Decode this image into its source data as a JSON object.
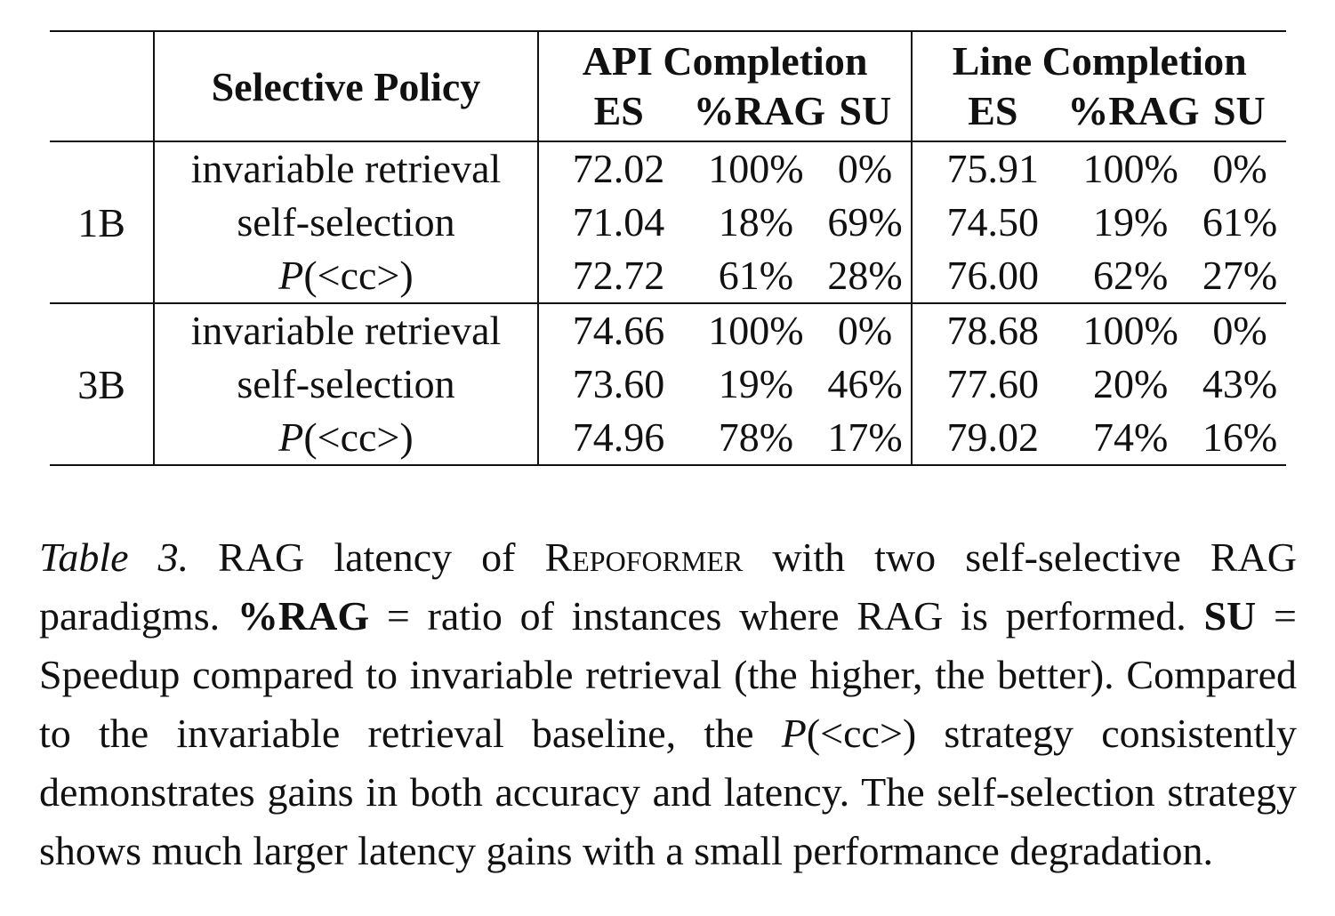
{
  "table": {
    "header": {
      "policy": "Selective Policy",
      "groups": [
        {
          "title": "API Completion",
          "metrics": [
            "ES",
            "%RAG",
            "SU"
          ]
        },
        {
          "title": "Line Completion",
          "metrics": [
            "ES",
            "%RAG",
            "SU"
          ]
        }
      ]
    },
    "blocks": [
      {
        "size": "1B",
        "rows": [
          {
            "policy": "invariable retrieval",
            "api": [
              "72.02",
              "100%",
              "0%"
            ],
            "line": [
              "75.91",
              "100%",
              "0%"
            ]
          },
          {
            "policy": "self-selection",
            "api": [
              "71.04",
              "18%",
              "69%"
            ],
            "line": [
              "74.50",
              "19%",
              "61%"
            ]
          },
          {
            "policy": "P(<cc>)",
            "api": [
              "72.72",
              "61%",
              "28%"
            ],
            "line": [
              "76.00",
              "62%",
              "27%"
            ]
          }
        ]
      },
      {
        "size": "3B",
        "rows": [
          {
            "policy": "invariable retrieval",
            "api": [
              "74.66",
              "100%",
              "0%"
            ],
            "line": [
              "78.68",
              "100%",
              "0%"
            ]
          },
          {
            "policy": "self-selection",
            "api": [
              "73.60",
              "19%",
              "46%"
            ],
            "line": [
              "77.60",
              "20%",
              "43%"
            ]
          },
          {
            "policy": "P(<cc>)",
            "api": [
              "74.96",
              "78%",
              "17%"
            ],
            "line": [
              "79.02",
              "74%",
              "16%"
            ]
          }
        ]
      }
    ]
  },
  "caption": {
    "label": "Table 3.",
    "s1a": " RAG latency of ",
    "model": "Repoformer",
    "s1b": " with two self-selective RAG paradigms. ",
    "rag_term": "%RAG",
    "rag_def": " = ratio of instances where RAG is performed. ",
    "su_term": "SU",
    "su_def": " = Speedup compared to invariable retrieval (the higher, the better). Compared to the invariable retrieval baseline, the ",
    "policy_p": "P",
    "policy_arg": "(<cc>)",
    "rest": " strategy consistently demonstrates gains in both accuracy and latency. The self-selection strategy shows much larger latency gains with a small performance degradation."
  }
}
